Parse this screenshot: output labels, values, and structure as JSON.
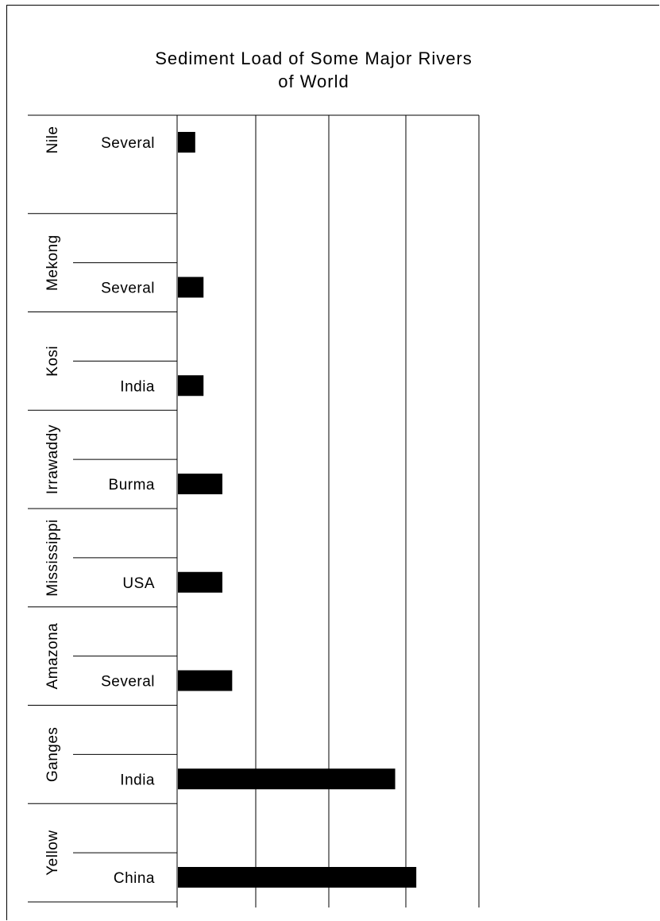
{
  "chart_data": {
    "type": "bar",
    "orientation": "horizontal",
    "title_lines": [
      "Sediment Load of Some Major Rivers",
      "of World"
    ],
    "title": "Sediment Load of Some Major Rivers of World",
    "xlabel": "",
    "ylabel": "",
    "xlim": [
      0,
      400
    ],
    "grid": true,
    "x_tick_values": [
      0,
      100,
      200,
      300,
      400
    ],
    "categories": [
      {
        "river": "Nile",
        "country": "Several",
        "value": 24
      },
      {
        "river": "Mekong",
        "country": "Several",
        "value": 35
      },
      {
        "river": "Kosi",
        "country": "India",
        "value": 35
      },
      {
        "river": "Irrawaddy",
        "country": "Burma",
        "value": 60
      },
      {
        "river": "Mississippi",
        "country": "USA",
        "value": 60
      },
      {
        "river": "Amazona",
        "country": "Several",
        "value": 73
      },
      {
        "river": "Ganges",
        "country": "India",
        "value": 289
      },
      {
        "river": "Yellow",
        "country": "China",
        "value": 317
      }
    ],
    "colors": {
      "bar": "#000000",
      "grid": "#000000",
      "background": "#ffffff"
    }
  }
}
